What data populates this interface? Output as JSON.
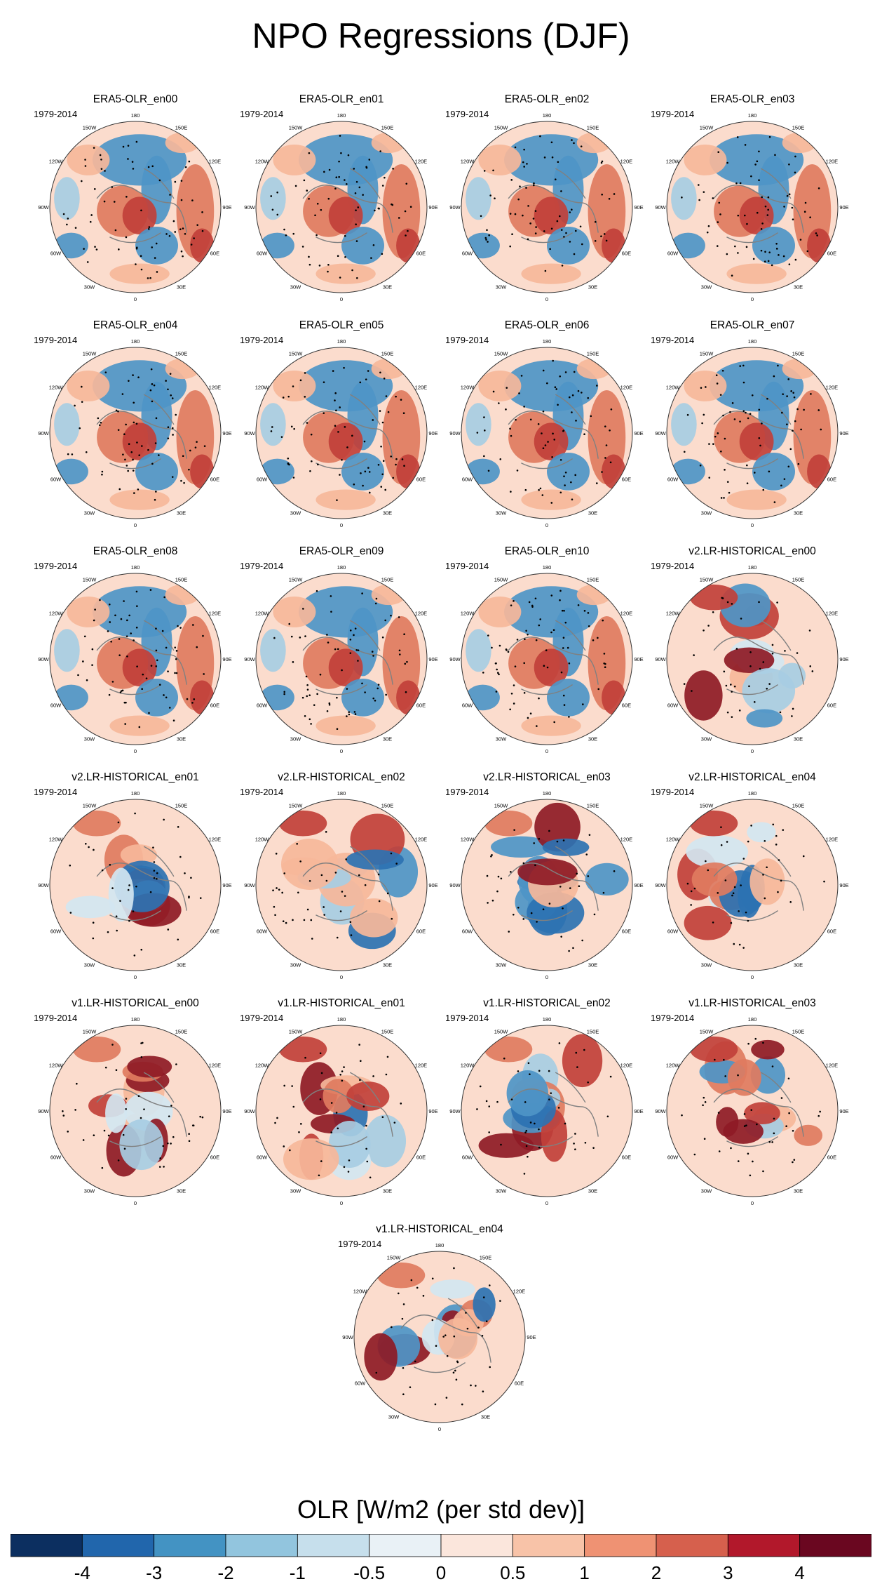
{
  "title": "NPO Regressions (DJF)",
  "period": "1979-2014",
  "lon_labels": [
    "180",
    "150E",
    "120E",
    "90E",
    "60E",
    "30E",
    "0",
    "30W",
    "60W",
    "90W",
    "120W",
    "150W"
  ],
  "panels": [
    {
      "name": "ERA5-OLR_en00",
      "style": "era5"
    },
    {
      "name": "ERA5-OLR_en01",
      "style": "era5"
    },
    {
      "name": "ERA5-OLR_en02",
      "style": "era5"
    },
    {
      "name": "ERA5-OLR_en03",
      "style": "era5"
    },
    {
      "name": "ERA5-OLR_en04",
      "style": "era5"
    },
    {
      "name": "ERA5-OLR_en05",
      "style": "era5"
    },
    {
      "name": "ERA5-OLR_en06",
      "style": "era5"
    },
    {
      "name": "ERA5-OLR_en07",
      "style": "era5"
    },
    {
      "name": "ERA5-OLR_en08",
      "style": "era5"
    },
    {
      "name": "ERA5-OLR_en09",
      "style": "era5"
    },
    {
      "name": "ERA5-OLR_en10",
      "style": "era5"
    },
    {
      "name": "v2.LR-HISTORICAL_en00",
      "style": "model"
    },
    {
      "name": "v2.LR-HISTORICAL_en01",
      "style": "model"
    },
    {
      "name": "v2.LR-HISTORICAL_en02",
      "style": "model"
    },
    {
      "name": "v2.LR-HISTORICAL_en03",
      "style": "model"
    },
    {
      "name": "v2.LR-HISTORICAL_en04",
      "style": "model"
    },
    {
      "name": "v1.LR-HISTORICAL_en00",
      "style": "model"
    },
    {
      "name": "v1.LR-HISTORICAL_en01",
      "style": "model"
    },
    {
      "name": "v1.LR-HISTORICAL_en02",
      "style": "model"
    },
    {
      "name": "v1.LR-HISTORICAL_en03",
      "style": "model"
    },
    {
      "name": "v1.LR-HISTORICAL_en04",
      "style": "model"
    }
  ],
  "colorbar": {
    "label": "OLR [W/m2 (per std dev)]",
    "levels": [
      "-4",
      "-3",
      "-2",
      "-1",
      "-0.5",
      "0",
      "0.5",
      "1",
      "2",
      "3",
      "4"
    ],
    "colors": [
      "#0c2f60",
      "#2166ac",
      "#4393c3",
      "#92c5de",
      "#c6dfec",
      "#e9f1f6",
      "#fbe6dc",
      "#f8c3a8",
      "#ef9273",
      "#d6604d",
      "#b2182b",
      "#6a0720"
    ]
  },
  "map_colors": {
    "strong_blue": "#2c72b2",
    "blue": "#4e95c7",
    "light_blue": "#a7cde3",
    "pale_blue": "#d3e6f1",
    "pale_red": "#fbdccd",
    "light_red": "#f6b79a",
    "red": "#e07b5f",
    "strong_red": "#c1403a",
    "dark_red": "#8e1a25",
    "coast": "#808080",
    "stipple": "#000000"
  }
}
